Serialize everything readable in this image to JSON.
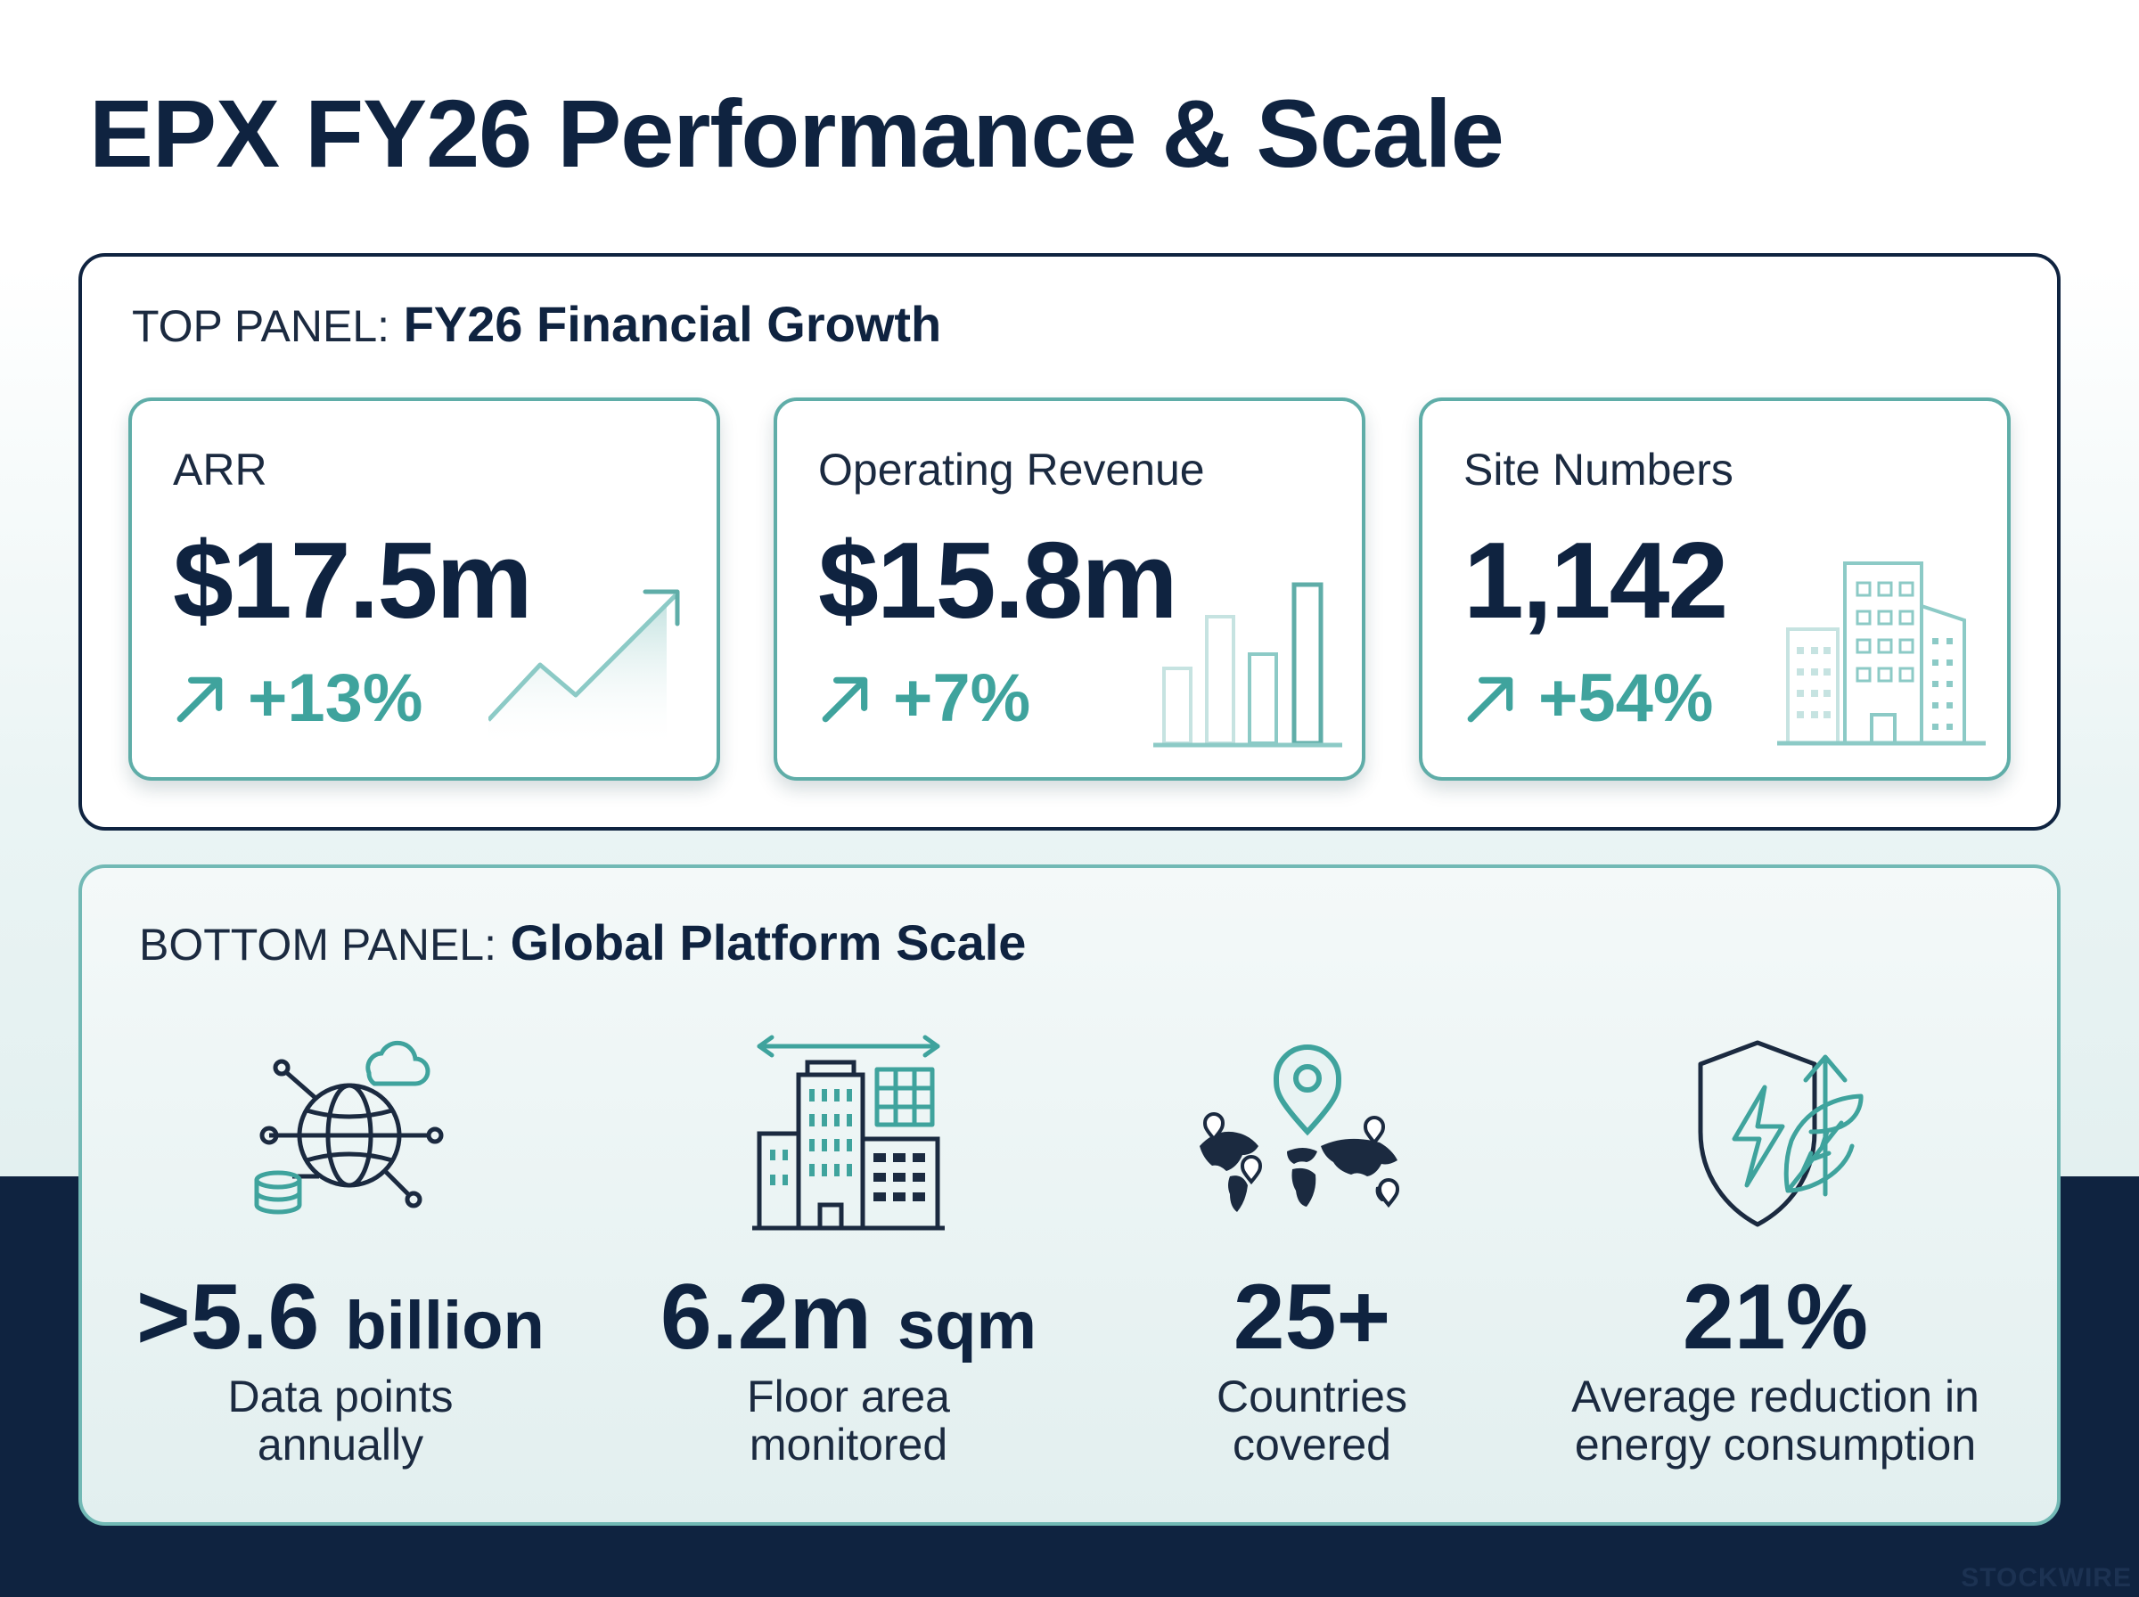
{
  "title": "EPX FY26 Performance & Scale",
  "top_panel": {
    "prefix": "TOP PANEL:",
    "heading": "FY26 Financial Growth",
    "cards": [
      {
        "label": "ARR",
        "value": "$17.5m",
        "change": "+13%",
        "graphic": "trend-up-chart-icon"
      },
      {
        "label": "Operating Revenue",
        "value": "$15.8m",
        "change": "+7%",
        "graphic": "bar-chart-icon"
      },
      {
        "label": "Site Numbers",
        "value": "1,142",
        "change": "+54%",
        "graphic": "buildings-icon"
      }
    ]
  },
  "bottom_panel": {
    "prefix": "BOTTOM PANEL:",
    "heading": "Global Platform Scale",
    "stats": [
      {
        "value": ">5.6",
        "unit": "billion",
        "line1": "Data points",
        "line2": "annually",
        "icon": "global-data-network-icon"
      },
      {
        "value": "6.2m",
        "unit": "sqm",
        "line1": "Floor area",
        "line2": "monitored",
        "icon": "floor-area-building-icon"
      },
      {
        "value": "25+",
        "unit": "",
        "line1": "Countries",
        "line2": "covered",
        "icon": "world-map-pins-icon"
      },
      {
        "value": "21%",
        "unit": "",
        "line1": "Average reduction in",
        "line2": "energy consumption",
        "icon": "energy-shield-leaf-icon"
      }
    ]
  },
  "watermark": "STOCKWIRE",
  "colors": {
    "navy": "#0f2340",
    "teal": "#3fa39d",
    "teal_border": "#5fada8"
  }
}
